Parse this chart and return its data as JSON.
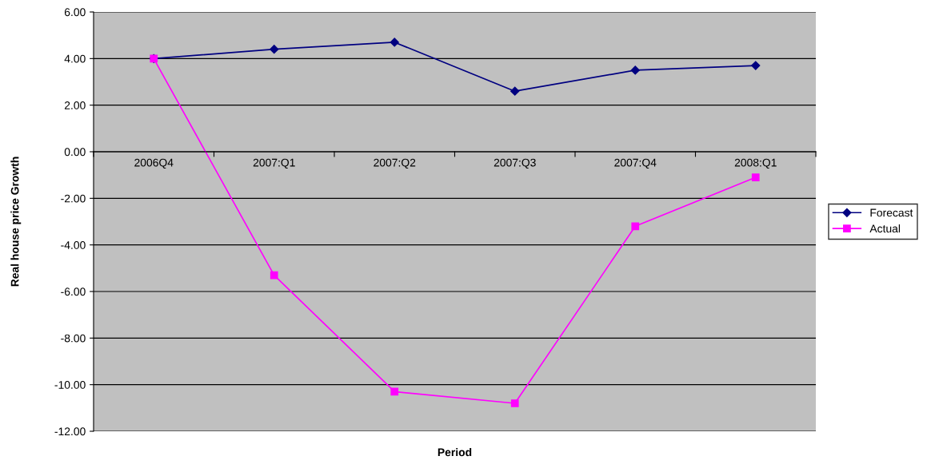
{
  "chart_data": {
    "type": "line",
    "xlabel": "Period",
    "ylabel": "Real house price Growth",
    "categories": [
      "2006Q4",
      "2007:Q1",
      "2007:Q2",
      "2007:Q3",
      "2007:Q4",
      "2008:Q1"
    ],
    "series": [
      {
        "name": "Forecast",
        "color": "#000080",
        "marker": "diamond",
        "values": [
          4.0,
          4.4,
          4.7,
          2.6,
          3.5,
          3.7
        ]
      },
      {
        "name": "Actual",
        "color": "#ff00ff",
        "marker": "square",
        "values": [
          4.0,
          -5.3,
          -10.3,
          -10.8,
          -3.2,
          -1.1
        ]
      }
    ],
    "ylim": [
      -12,
      6
    ],
    "yticks": [
      {
        "value": -12,
        "label": "-12.00"
      },
      {
        "value": -10,
        "label": "-10.00"
      },
      {
        "value": -8,
        "label": "-8.00"
      },
      {
        "value": -6,
        "label": "-6.00"
      },
      {
        "value": -4,
        "label": "-4.00"
      },
      {
        "value": -2,
        "label": "-2.00"
      },
      {
        "value": 0,
        "label": "0.00"
      },
      {
        "value": 2,
        "label": "2.00"
      },
      {
        "value": 4,
        "label": "4.00"
      },
      {
        "value": 6,
        "label": "6.00"
      }
    ],
    "grid": "y",
    "legend": "right"
  }
}
